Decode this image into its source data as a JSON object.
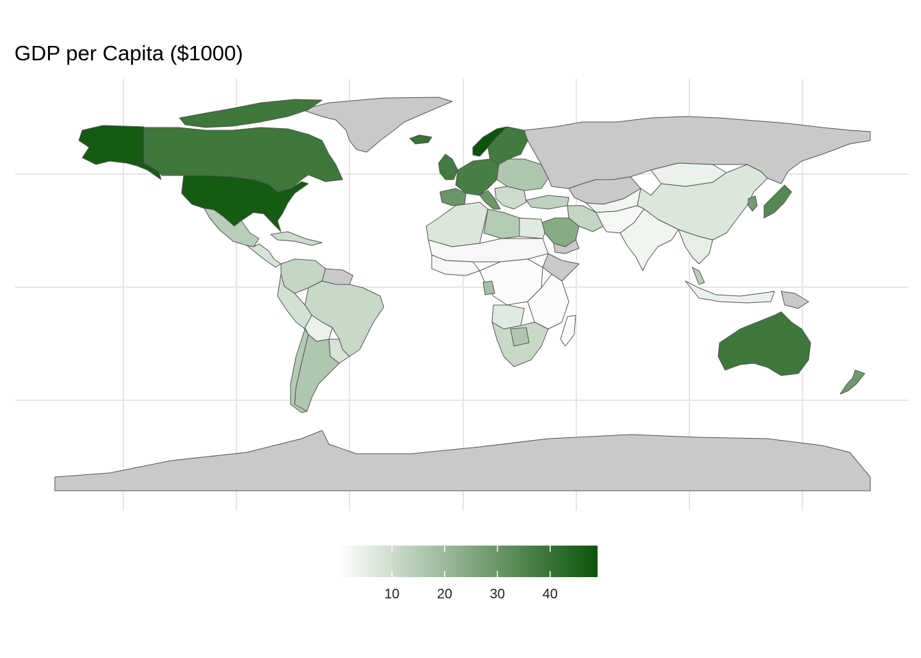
{
  "title": "GDP per Capita ($1000)",
  "map": {
    "projection": "equirectangular",
    "gridlines": true,
    "background": "#ffffff",
    "no_data_color": "#c9c9c9",
    "border_color": "#555555"
  },
  "legend": {
    "type": "colorbar",
    "placement": "bottom-center",
    "min": 0,
    "max": 49,
    "low_color": "#ffffff",
    "high_color": "#0b5408",
    "ticks": [
      {
        "value": 10,
        "label": "10"
      },
      {
        "value": 20,
        "label": "20"
      },
      {
        "value": 30,
        "label": "30"
      },
      {
        "value": 40,
        "label": "40"
      }
    ]
  },
  "regions": [
    {
      "id": "alaska",
      "name": "Alaska (United States)",
      "value": 47
    },
    {
      "id": "canada",
      "name": "Canada",
      "value": 39
    },
    {
      "id": "canada-arctic",
      "name": "Canadian Arctic Islands",
      "value": 39
    },
    {
      "id": "greenland",
      "name": "Greenland",
      "value": null
    },
    {
      "id": "usa",
      "name": "United States",
      "value": 47
    },
    {
      "id": "mexico",
      "name": "Mexico",
      "value": 14
    },
    {
      "id": "central-america",
      "name": "Central America",
      "value": 8
    },
    {
      "id": "caribbean",
      "name": "Caribbean",
      "value": 10
    },
    {
      "id": "colombia-venezuela",
      "name": "Colombia / Venezuela",
      "value": 12
    },
    {
      "id": "guianas",
      "name": "Guianas",
      "value": null
    },
    {
      "id": "brazil",
      "name": "Brazil",
      "value": 11
    },
    {
      "id": "peru-ecuador",
      "name": "Peru / Ecuador",
      "value": 9
    },
    {
      "id": "bolivia",
      "name": "Bolivia",
      "value": 4
    },
    {
      "id": "paraguay-uruguay",
      "name": "Paraguay / Uruguay",
      "value": 8
    },
    {
      "id": "chile",
      "name": "Chile",
      "value": 15
    },
    {
      "id": "argentina",
      "name": "Argentina",
      "value": 16
    },
    {
      "id": "iceland",
      "name": "Iceland",
      "value": 40
    },
    {
      "id": "uk-ireland",
      "name": "United Kingdom / Ireland",
      "value": 38
    },
    {
      "id": "norway",
      "name": "Norway",
      "value": 49
    },
    {
      "id": "sweden-finland",
      "name": "Sweden / Finland",
      "value": 38
    },
    {
      "id": "western-europe",
      "name": "Western Europe",
      "value": 37
    },
    {
      "id": "iberia",
      "name": "Spain / Portugal",
      "value": 30
    },
    {
      "id": "italy",
      "name": "Italy",
      "value": 30
    },
    {
      "id": "eastern-europe",
      "name": "Eastern Europe",
      "value": 16
    },
    {
      "id": "balkans",
      "name": "Balkans",
      "value": 10
    },
    {
      "id": "turkey",
      "name": "Turkey",
      "value": 13
    },
    {
      "id": "russia",
      "name": "Russia",
      "value": null
    },
    {
      "id": "kazakhstan",
      "name": "Kazakhstan",
      "value": null
    },
    {
      "id": "north-africa",
      "name": "North Africa",
      "value": 7
    },
    {
      "id": "libya",
      "name": "Libya",
      "value": 15
    },
    {
      "id": "egypt",
      "name": "Egypt",
      "value": 6
    },
    {
      "id": "sahel",
      "name": "Sahel",
      "value": 2
    },
    {
      "id": "west-africa",
      "name": "West Africa",
      "value": 2
    },
    {
      "id": "central-africa",
      "name": "Central Africa",
      "value": 1
    },
    {
      "id": "gabon",
      "name": "Gabon",
      "value": 18
    },
    {
      "id": "east-africa",
      "name": "East Africa",
      "value": 1
    },
    {
      "id": "horn-of-africa",
      "name": "Horn of Africa",
      "value": null
    },
    {
      "id": "angola",
      "name": "Angola",
      "value": 6
    },
    {
      "id": "southern-africa",
      "name": "Southern Africa",
      "value": 11
    },
    {
      "id": "botswana",
      "name": "Botswana",
      "value": 16
    },
    {
      "id": "madagascar",
      "name": "Madagascar",
      "value": 1
    },
    {
      "id": "saudi-arabia",
      "name": "Saudi Arabia",
      "value": 24
    },
    {
      "id": "yemen",
      "name": "Yemen",
      "value": null
    },
    {
      "id": "iran",
      "name": "Iran",
      "value": 12
    },
    {
      "id": "central-asia",
      "name": "Central Asia",
      "value": 3
    },
    {
      "id": "afghanistan-pakistan",
      "name": "Afghanistan / Pakistan",
      "value": 2
    },
    {
      "id": "india",
      "name": "India",
      "value": 3
    },
    {
      "id": "mongolia",
      "name": "Mongolia",
      "value": 4
    },
    {
      "id": "china",
      "name": "China",
      "value": 7
    },
    {
      "id": "korea",
      "name": "South Korea",
      "value": 28
    },
    {
      "id": "japan",
      "name": "Japan",
      "value": 34
    },
    {
      "id": "southeast-asia",
      "name": "Southeast Asia",
      "value": 5
    },
    {
      "id": "malaysia",
      "name": "Malaysia",
      "value": 14
    },
    {
      "id": "indonesia",
      "name": "Indonesia",
      "value": 4
    },
    {
      "id": "png",
      "name": "Papua New Guinea",
      "value": null
    },
    {
      "id": "australia",
      "name": "Australia",
      "value": 39
    },
    {
      "id": "new-zealand",
      "name": "New Zealand",
      "value": 29
    },
    {
      "id": "antarctica",
      "name": "Antarctica",
      "value": null
    }
  ]
}
